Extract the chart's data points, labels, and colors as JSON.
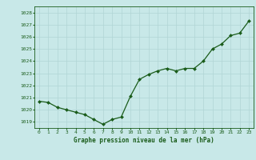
{
  "x": [
    0,
    1,
    2,
    3,
    4,
    5,
    6,
    7,
    8,
    9,
    10,
    11,
    12,
    13,
    14,
    15,
    16,
    17,
    18,
    19,
    20,
    21,
    22,
    23
  ],
  "y": [
    1020.7,
    1020.6,
    1020.2,
    1020.0,
    1019.8,
    1019.6,
    1019.2,
    1018.8,
    1019.2,
    1019.4,
    1021.1,
    1022.5,
    1022.9,
    1023.2,
    1023.4,
    1023.2,
    1023.4,
    1023.4,
    1024.0,
    1025.0,
    1025.4,
    1026.1,
    1026.3,
    1027.3
  ],
  "ylim": [
    1018.5,
    1028.5
  ],
  "yticks": [
    1019,
    1020,
    1021,
    1022,
    1023,
    1024,
    1025,
    1026,
    1027,
    1028
  ],
  "xticks": [
    0,
    1,
    2,
    3,
    4,
    5,
    6,
    7,
    8,
    9,
    10,
    11,
    12,
    13,
    14,
    15,
    16,
    17,
    18,
    19,
    20,
    21,
    22,
    23
  ],
  "line_color": "#1a5c1a",
  "marker_color": "#1a5c1a",
  "bg_color": "#c8e8e8",
  "grid_color": "#b0d4d4",
  "xlabel": "Graphe pression niveau de la mer (hPa)",
  "xlabel_color": "#1a5c1a",
  "tick_color": "#1a5c1a"
}
